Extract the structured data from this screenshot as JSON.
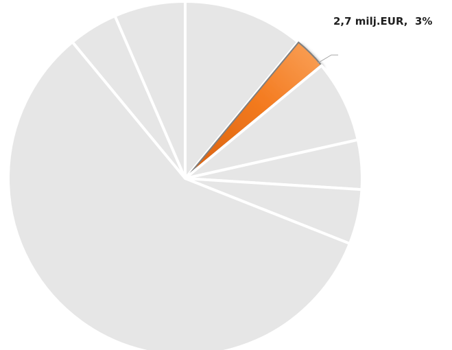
{
  "chart_data": {
    "type": "pie",
    "title": "",
    "slices": [
      {
        "value": 11,
        "label": "",
        "color": "#e6e6e6",
        "explode": false
      },
      {
        "value": 3,
        "label": "2,7 milj.EUR,  3%",
        "color": "#f47b20",
        "explode": true
      },
      {
        "value": 7.5,
        "label": "",
        "color": "#e6e6e6",
        "explode": false
      },
      {
        "value": 4.5,
        "label": "",
        "color": "#e6e6e6",
        "explode": false
      },
      {
        "value": 5,
        "label": "",
        "color": "#e6e6e6",
        "explode": false
      },
      {
        "value": 58,
        "label": "",
        "color": "#e6e6e6",
        "explode": false
      },
      {
        "value": 4.5,
        "label": "",
        "color": "#e6e6e6",
        "explode": false
      },
      {
        "value": 6.5,
        "label": "",
        "color": "#e6e6e6",
        "explode": false
      }
    ],
    "start_angle_deg": 0,
    "direction": "clockwise",
    "legend": "none"
  },
  "colors": {
    "highlight_fill": "#f47b20",
    "highlight_shadow": "#a0a0a0",
    "default_fill": "#e6e6e6"
  }
}
